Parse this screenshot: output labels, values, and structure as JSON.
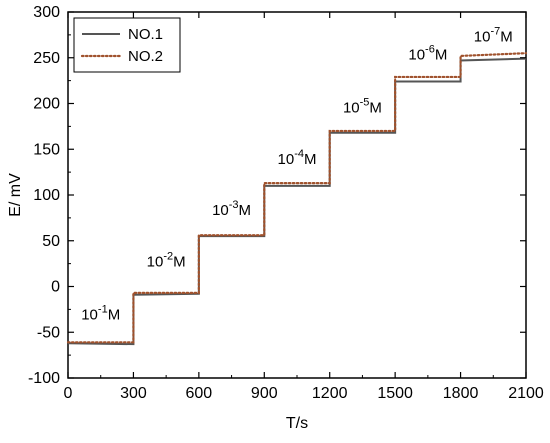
{
  "chart_data": {
    "type": "line",
    "title": "",
    "xlabel": "T/s",
    "ylabel": "E/ mV",
    "xlim": [
      0,
      2100
    ],
    "ylim": [
      -100,
      300
    ],
    "xticks": [
      0,
      300,
      600,
      900,
      1200,
      1500,
      1800,
      2100
    ],
    "yticks": [
      -100,
      -50,
      0,
      50,
      100,
      150,
      200,
      250,
      300
    ],
    "grid": false,
    "legend_position": "top-left",
    "series": [
      {
        "name": "NO.1",
        "color": "#555555",
        "style": "solid",
        "x": [
          0,
          300,
          300,
          600,
          600,
          900,
          900,
          1200,
          1200,
          1500,
          1500,
          1800,
          1800,
          2100
        ],
        "y": [
          -62,
          -63,
          -9,
          -8,
          55,
          55,
          110,
          110,
          168,
          168,
          224,
          224,
          247,
          249
        ]
      },
      {
        "name": "NO.2",
        "color": "#a0522d",
        "style": "dotted",
        "x": [
          0,
          300,
          300,
          600,
          600,
          900,
          900,
          1200,
          1200,
          1500,
          1500,
          1800,
          1800,
          2100
        ],
        "y": [
          -61,
          -61,
          -7,
          -7,
          56,
          56,
          113,
          113,
          170,
          170,
          229,
          229,
          252,
          255
        ]
      }
    ],
    "annotations": [
      {
        "base": "10",
        "exp": "-1",
        "unit": "M",
        "x": 150,
        "y": -36
      },
      {
        "base": "10",
        "exp": "-2",
        "unit": "M",
        "x": 450,
        "y": 22
      },
      {
        "base": "10",
        "exp": "-3",
        "unit": "M",
        "x": 750,
        "y": 78
      },
      {
        "base": "10",
        "exp": "-4",
        "unit": "M",
        "x": 1050,
        "y": 134
      },
      {
        "base": "10",
        "exp": "-5",
        "unit": "M",
        "x": 1350,
        "y": 190
      },
      {
        "base": "10",
        "exp": "-6",
        "unit": "M",
        "x": 1650,
        "y": 248
      },
      {
        "base": "10",
        "exp": "-7",
        "unit": "M",
        "x": 1950,
        "y": 268
      }
    ]
  }
}
